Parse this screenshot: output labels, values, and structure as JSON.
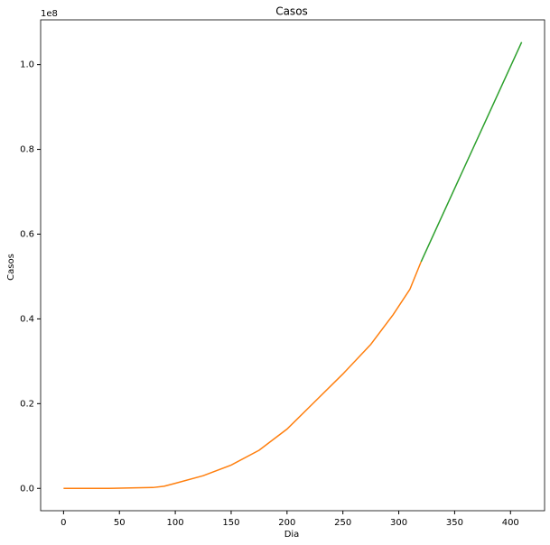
{
  "chart_data": {
    "type": "line",
    "title": "Casos",
    "x_label": "Dia",
    "y_label": "Casos",
    "y_offset_label": "1e8",
    "series": [
      {
        "color": "#ff7f0e",
        "x": [
          0,
          20,
          40,
          60,
          80,
          90,
          100,
          125,
          150,
          175,
          200,
          225,
          250,
          275,
          295,
          310,
          320
        ],
        "values": [
          0,
          0,
          0,
          0.001,
          0.002,
          0.005,
          0.012,
          0.03,
          0.055,
          0.09,
          0.14,
          0.205,
          0.27,
          0.34,
          0.41,
          0.47,
          0.535
        ]
      },
      {
        "color": "#2ca02c",
        "x": [
          320,
          410
        ],
        "values": [
          0.535,
          1.053
        ]
      }
    ],
    "xlim": [
      -20.5,
      430.5
    ],
    "xticks": [
      0,
      50,
      100,
      150,
      200,
      250,
      300,
      350,
      400
    ],
    "ylim": [
      -0.0527,
      1.1057
    ],
    "yticks": [
      {
        "value": 0,
        "label": "0.0"
      },
      0.2,
      0.4,
      0.6,
      0.8,
      {
        "value": 1,
        "label": "1.0"
      }
    ]
  }
}
